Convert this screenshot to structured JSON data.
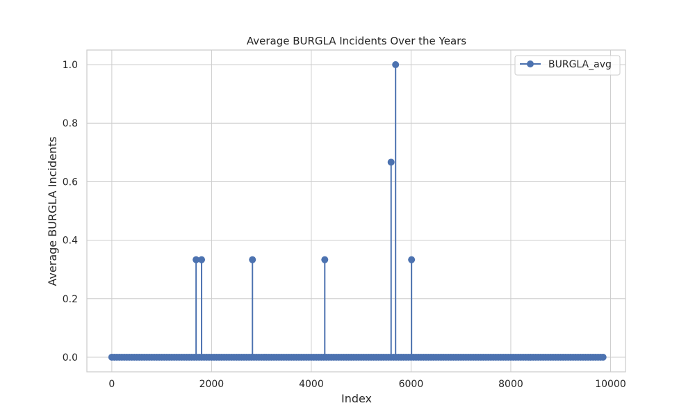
{
  "chart_data": {
    "type": "line",
    "title": "Average BURGLA Incidents Over the Years",
    "xlabel": "Index",
    "ylabel": "Average BURGLA Incidents",
    "xlim": [
      -500,
      10300
    ],
    "ylim": [
      -0.05,
      1.05
    ],
    "x_ticks": [
      0,
      2000,
      4000,
      6000,
      8000,
      10000
    ],
    "x_tick_labels": [
      "0",
      "2000",
      "4000",
      "6000",
      "8000",
      "10000"
    ],
    "y_ticks": [
      0.0,
      0.2,
      0.4,
      0.6,
      0.8,
      1.0
    ],
    "y_tick_labels": [
      "0.0",
      "0.2",
      "0.4",
      "0.6",
      "0.8",
      "1.0"
    ],
    "grid": true,
    "legend_position": "top-right",
    "series": [
      {
        "name": "BURGLA_avg",
        "color": "#4c72b0",
        "marker": "circle",
        "baseline_value": 0.0,
        "x_range": [
          0,
          9850
        ],
        "point_step": 50,
        "nonzero_points": [
          {
            "x": 1690,
            "y": 0.3333
          },
          {
            "x": 1800,
            "y": 0.3333
          },
          {
            "x": 2820,
            "y": 0.3333
          },
          {
            "x": 4270,
            "y": 0.3333
          },
          {
            "x": 5600,
            "y": 0.6667
          },
          {
            "x": 5690,
            "y": 1.0
          },
          {
            "x": 6010,
            "y": 0.3333
          }
        ]
      }
    ]
  },
  "colors": {
    "series": "#4c72b0",
    "grid": "#cccccc",
    "axes_edge": "#cccccc",
    "text": "#262626"
  }
}
